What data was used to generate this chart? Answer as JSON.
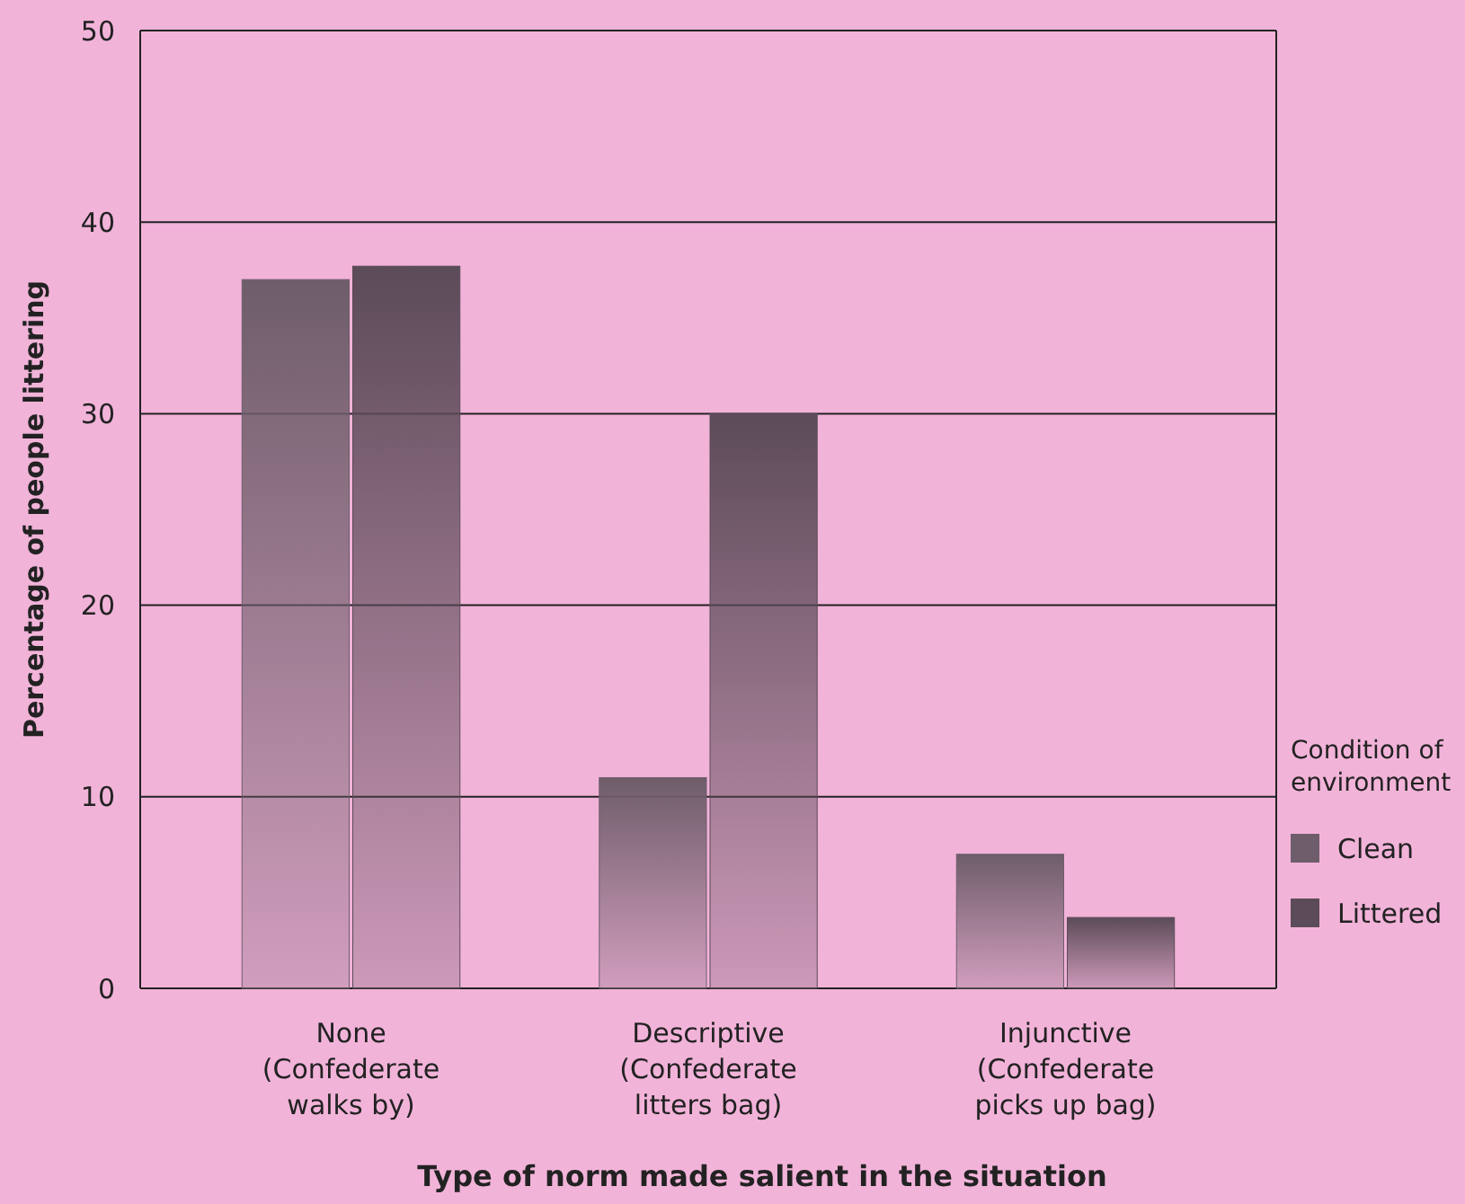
{
  "chart_data": {
    "type": "bar",
    "xlabel": "Type of norm made salient in the situation",
    "ylabel": "Percentage of people littering",
    "legend_title": "Condition of\nenvironment",
    "categories": [
      "None\n(Confederate\nwalks by)",
      "Descriptive\n(Confederate\nlitters bag)",
      "Injunctive\n(Confederate\npicks up bag)"
    ],
    "series": [
      {
        "name": "Clean",
        "color": "#6e5d6a",
        "values": [
          37,
          11,
          7
        ]
      },
      {
        "name": "Littered",
        "color": "#5c4b58",
        "values": [
          37.7,
          30,
          3.7
        ]
      }
    ],
    "ylim": [
      0,
      50
    ],
    "yticks": [
      0,
      10,
      20,
      30,
      40,
      50
    ],
    "grid": "y",
    "legend": "bottom right"
  }
}
